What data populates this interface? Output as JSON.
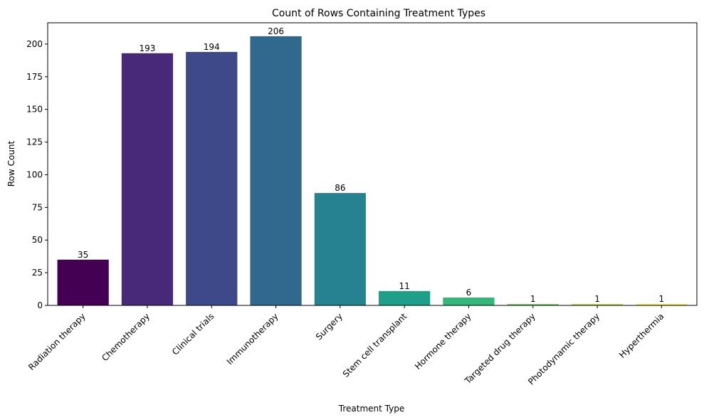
{
  "chart_data": {
    "type": "bar",
    "title": "Count of Rows Containing Treatment Types",
    "xlabel": "Treatment Type",
    "ylabel": "Row Count",
    "categories": [
      "Radiation therapy",
      "Chemotherapy",
      "Clinical trials",
      "Immunotherapy",
      "Surgery",
      "Stem cell transplant",
      "Hormone therapy",
      "Targeted drug therapy",
      "Photodynamic therapy",
      "Hyperthermia"
    ],
    "values": [
      35,
      193,
      194,
      206,
      86,
      11,
      6,
      1,
      1,
      1
    ],
    "data_labels": [
      "35",
      "193",
      "194",
      "206",
      "86",
      "11",
      "6",
      "1",
      "1",
      "1"
    ],
    "colors": [
      "#440154",
      "#482878",
      "#3e4989",
      "#31688e",
      "#26828e",
      "#1f9e89",
      "#35b779",
      "#6ece58",
      "#b5de2b",
      "#fde725"
    ],
    "ylim": [
      0,
      216.3
    ],
    "yticks": [
      0,
      25,
      50,
      75,
      100,
      125,
      150,
      175,
      200
    ],
    "ytick_labels": [
      "0",
      "25",
      "50",
      "75",
      "100",
      "125",
      "150",
      "175",
      "200"
    ],
    "grid": false,
    "legend": "none"
  }
}
